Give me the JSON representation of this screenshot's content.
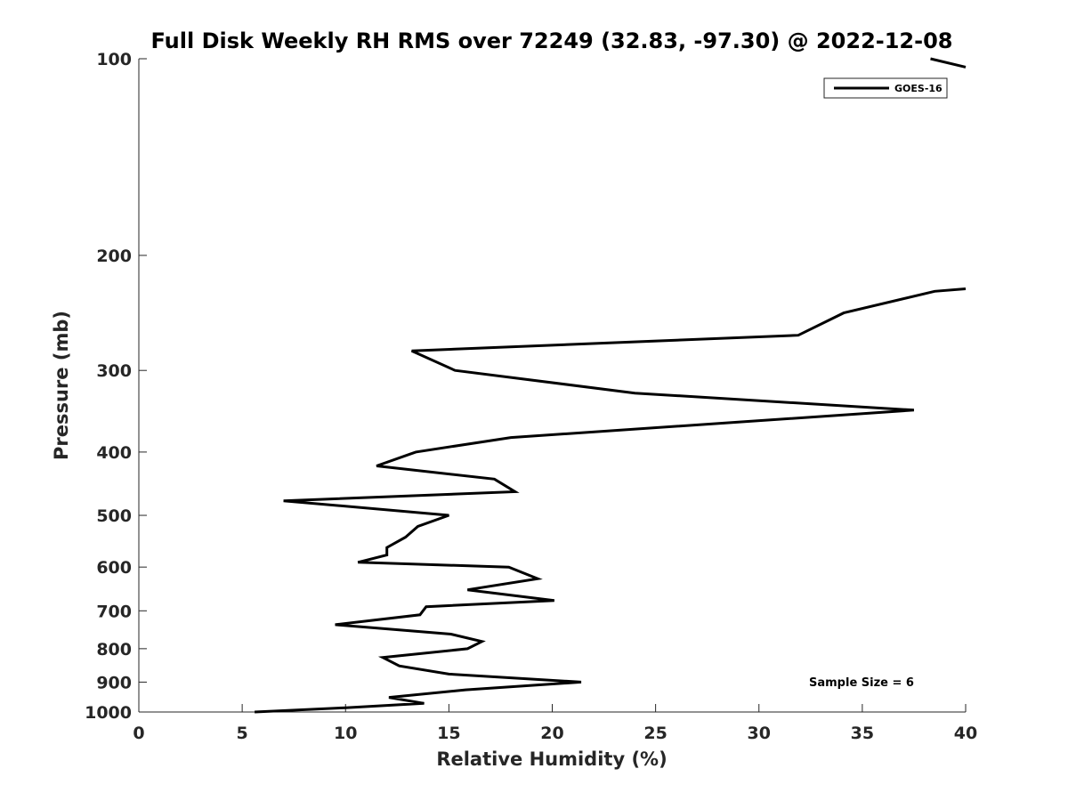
{
  "chart_data": {
    "type": "line",
    "title": "Full Disk Weekly RH RMS over 72249 (32.83, -97.30) @ 2022-12-08",
    "xlabel": "Relative Humidity (%)",
    "ylabel": "Pressure (mb)",
    "xlim": [
      0,
      40
    ],
    "ylim": [
      100,
      1000
    ],
    "y_scale": "log",
    "y_reversed": true,
    "x_ticks": [
      0,
      5,
      10,
      15,
      20,
      25,
      30,
      35,
      40
    ],
    "y_ticks": [
      100,
      200,
      300,
      400,
      500,
      600,
      700,
      800,
      900,
      1000
    ],
    "grid": false,
    "legend_position": "top-right",
    "series": [
      {
        "name": "GOES-16",
        "color": "#000000",
        "points": [
          {
            "x": 5.6,
            "p": 1000
          },
          {
            "x": 10.0,
            "p": 985
          },
          {
            "x": 13.8,
            "p": 970
          },
          {
            "x": 12.1,
            "p": 950
          },
          {
            "x": 15.8,
            "p": 925
          },
          {
            "x": 21.4,
            "p": 900
          },
          {
            "x": 15.0,
            "p": 875
          },
          {
            "x": 12.6,
            "p": 850
          },
          {
            "x": 11.8,
            "p": 825
          },
          {
            "x": 15.9,
            "p": 800
          },
          {
            "x": 16.6,
            "p": 780
          },
          {
            "x": 15.1,
            "p": 760
          },
          {
            "x": 9.5,
            "p": 735
          },
          {
            "x": 13.6,
            "p": 710
          },
          {
            "x": 13.9,
            "p": 690
          },
          {
            "x": 20.1,
            "p": 675
          },
          {
            "x": 15.9,
            "p": 650
          },
          {
            "x": 19.3,
            "p": 625
          },
          {
            "x": 17.9,
            "p": 600
          },
          {
            "x": 10.6,
            "p": 590
          },
          {
            "x": 12.0,
            "p": 575
          },
          {
            "x": 12.0,
            "p": 560
          },
          {
            "x": 12.9,
            "p": 540
          },
          {
            "x": 13.5,
            "p": 520
          },
          {
            "x": 15.0,
            "p": 500
          },
          {
            "x": 7.0,
            "p": 475
          },
          {
            "x": 18.2,
            "p": 460
          },
          {
            "x": 17.2,
            "p": 440
          },
          {
            "x": 11.5,
            "p": 420
          },
          {
            "x": 13.4,
            "p": 400
          },
          {
            "x": 18.0,
            "p": 380
          },
          {
            "x": 29.0,
            "p": 360
          },
          {
            "x": 37.5,
            "p": 345
          },
          {
            "x": 24.0,
            "p": 325
          },
          {
            "x": 15.3,
            "p": 300
          },
          {
            "x": 13.2,
            "p": 280
          },
          {
            "x": 31.9,
            "p": 265
          },
          {
            "x": 34.1,
            "p": 245
          },
          {
            "x": 38.5,
            "p": 227
          },
          {
            "x": 40.0,
            "p": 225
          }
        ],
        "upper_segment": [
          {
            "x": 38.3,
            "p": 100
          },
          {
            "x": 40.0,
            "p": 103
          }
        ]
      }
    ],
    "annotation": "Sample Size = 6"
  }
}
